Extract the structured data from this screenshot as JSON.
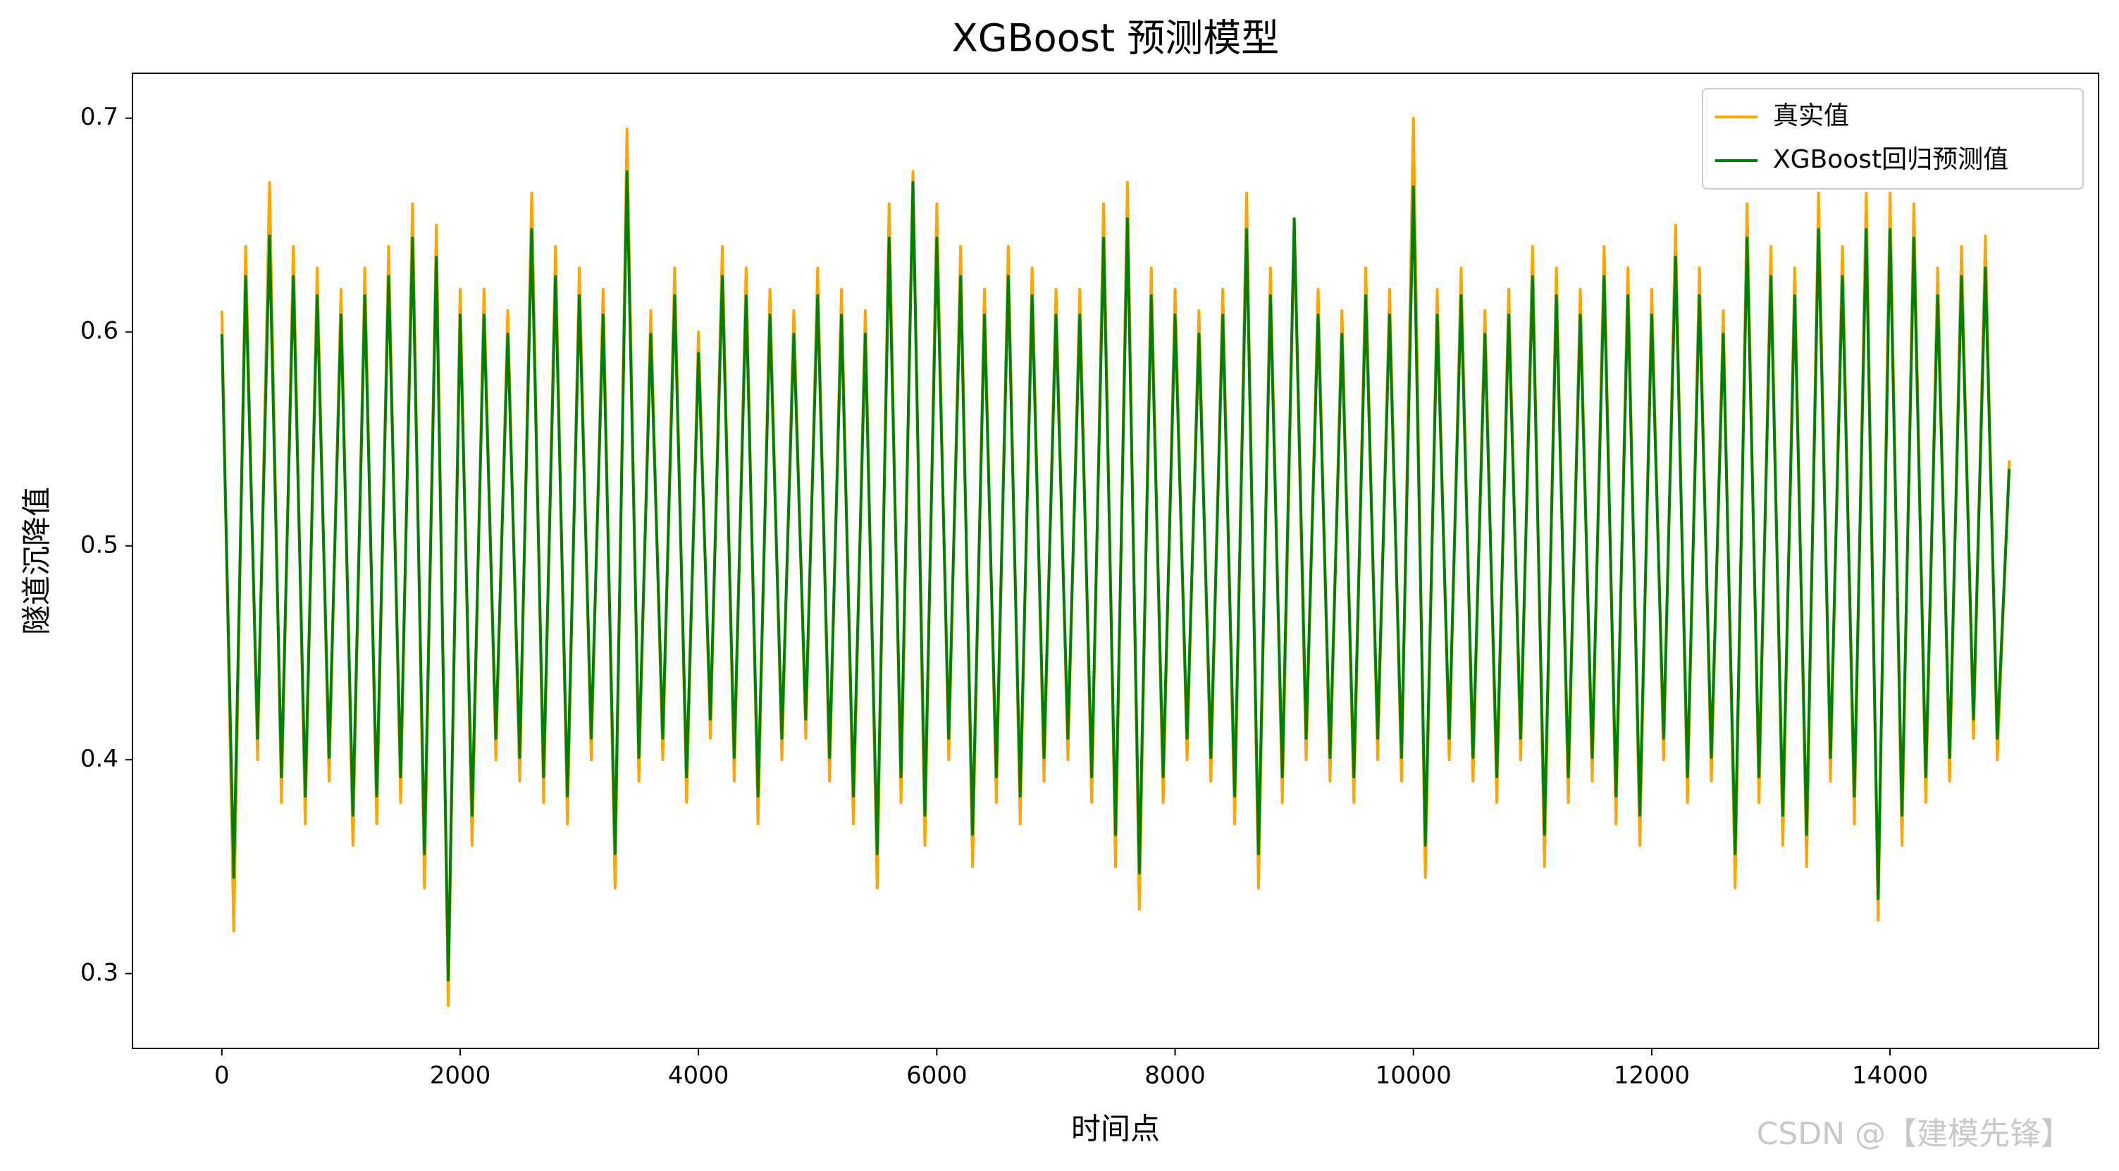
{
  "chart_data": {
    "type": "line",
    "title": "XGBoost 预测模型",
    "x_label": "时间点",
    "y_label": "隧道沉降值",
    "watermark": "CSDN @【建模先锋】",
    "x": [
      0,
      100,
      200,
      300,
      400,
      500,
      600,
      700,
      800,
      900,
      1000,
      1100,
      1200,
      1300,
      1400,
      1500,
      1600,
      1700,
      1800,
      1900,
      2000,
      2100,
      2200,
      2300,
      2400,
      2500,
      2600,
      2700,
      2800,
      2900,
      3000,
      3100,
      3200,
      3300,
      3400,
      3500,
      3600,
      3700,
      3800,
      3900,
      4000,
      4100,
      4200,
      4300,
      4400,
      4500,
      4600,
      4700,
      4800,
      4900,
      5000,
      5100,
      5200,
      5300,
      5400,
      5500,
      5600,
      5700,
      5800,
      5900,
      6000,
      6100,
      6200,
      6300,
      6400,
      6500,
      6600,
      6700,
      6800,
      6900,
      7000,
      7100,
      7200,
      7300,
      7400,
      7500,
      7600,
      7700,
      7800,
      7900,
      8000,
      8100,
      8200,
      8300,
      8400,
      8500,
      8600,
      8700,
      8800,
      8900,
      9000,
      9100,
      9200,
      9300,
      9400,
      9500,
      9600,
      9700,
      9800,
      9900,
      10000,
      10100,
      10200,
      10300,
      10400,
      10500,
      10600,
      10700,
      10800,
      10900,
      11000,
      11100,
      11200,
      11300,
      11400,
      11500,
      11600,
      11700,
      11800,
      11900,
      12000,
      12100,
      12200,
      12300,
      12400,
      12500,
      12600,
      12700,
      12800,
      12900,
      13000,
      13100,
      13200,
      13300,
      13400,
      13500,
      13600,
      13700,
      13800,
      13900,
      14000,
      14100,
      14200,
      14300,
      14400,
      14500,
      14600,
      14700,
      14800,
      14900,
      15000
    ],
    "series": [
      {
        "name": "真实值",
        "color": "#ffa500",
        "values": [
          0.61,
          0.32,
          0.64,
          0.4,
          0.67,
          0.38,
          0.64,
          0.37,
          0.63,
          0.39,
          0.62,
          0.36,
          0.63,
          0.37,
          0.64,
          0.38,
          0.66,
          0.34,
          0.65,
          0.285,
          0.62,
          0.36,
          0.62,
          0.4,
          0.61,
          0.39,
          0.665,
          0.38,
          0.64,
          0.37,
          0.63,
          0.4,
          0.62,
          0.34,
          0.695,
          0.39,
          0.61,
          0.4,
          0.63,
          0.38,
          0.6,
          0.41,
          0.64,
          0.39,
          0.63,
          0.37,
          0.62,
          0.4,
          0.61,
          0.41,
          0.63,
          0.39,
          0.62,
          0.37,
          0.61,
          0.34,
          0.66,
          0.38,
          0.675,
          0.36,
          0.66,
          0.4,
          0.64,
          0.35,
          0.62,
          0.38,
          0.64,
          0.37,
          0.63,
          0.39,
          0.62,
          0.4,
          0.62,
          0.38,
          0.66,
          0.35,
          0.67,
          0.33,
          0.63,
          0.38,
          0.62,
          0.4,
          0.61,
          0.39,
          0.62,
          0.37,
          0.665,
          0.34,
          0.63,
          0.38,
          0.65,
          0.4,
          0.62,
          0.39,
          0.61,
          0.38,
          0.63,
          0.4,
          0.62,
          0.39,
          0.7,
          0.345,
          0.62,
          0.4,
          0.63,
          0.39,
          0.61,
          0.38,
          0.62,
          0.4,
          0.64,
          0.35,
          0.63,
          0.38,
          0.62,
          0.39,
          0.64,
          0.37,
          0.63,
          0.36,
          0.62,
          0.4,
          0.65,
          0.38,
          0.63,
          0.39,
          0.61,
          0.34,
          0.66,
          0.38,
          0.64,
          0.36,
          0.63,
          0.35,
          0.665,
          0.39,
          0.64,
          0.37,
          0.665,
          0.325,
          0.665,
          0.36,
          0.66,
          0.38,
          0.63,
          0.39,
          0.64,
          0.41,
          0.645,
          0.4,
          0.54
        ]
      },
      {
        "name": "XGBoost回归预测值",
        "color": "#008000",
        "values": [
          0.599,
          0.345,
          0.626,
          0.41,
          0.645,
          0.392,
          0.626,
          0.383,
          0.617,
          0.401,
          0.608,
          0.374,
          0.617,
          0.383,
          0.626,
          0.392,
          0.644,
          0.356,
          0.635,
          0.297,
          0.608,
          0.374,
          0.608,
          0.41,
          0.599,
          0.401,
          0.648,
          0.392,
          0.626,
          0.383,
          0.617,
          0.41,
          0.608,
          0.356,
          0.675,
          0.401,
          0.599,
          0.41,
          0.617,
          0.392,
          0.59,
          0.419,
          0.626,
          0.401,
          0.617,
          0.383,
          0.608,
          0.41,
          0.599,
          0.419,
          0.617,
          0.401,
          0.608,
          0.383,
          0.599,
          0.356,
          0.644,
          0.392,
          0.67,
          0.374,
          0.644,
          0.41,
          0.626,
          0.365,
          0.608,
          0.392,
          0.626,
          0.383,
          0.617,
          0.401,
          0.608,
          0.41,
          0.608,
          0.392,
          0.644,
          0.365,
          0.653,
          0.347,
          0.617,
          0.392,
          0.608,
          0.41,
          0.599,
          0.401,
          0.608,
          0.383,
          0.648,
          0.356,
          0.617,
          0.392,
          0.653,
          0.41,
          0.608,
          0.401,
          0.599,
          0.392,
          0.617,
          0.41,
          0.608,
          0.401,
          0.668,
          0.36,
          0.608,
          0.41,
          0.617,
          0.401,
          0.599,
          0.392,
          0.608,
          0.41,
          0.626,
          0.365,
          0.617,
          0.392,
          0.608,
          0.401,
          0.626,
          0.383,
          0.617,
          0.374,
          0.608,
          0.41,
          0.635,
          0.392,
          0.617,
          0.401,
          0.599,
          0.356,
          0.644,
          0.392,
          0.626,
          0.374,
          0.617,
          0.365,
          0.648,
          0.401,
          0.626,
          0.383,
          0.648,
          0.335,
          0.648,
          0.374,
          0.644,
          0.392,
          0.617,
          0.401,
          0.626,
          0.419,
          0.63,
          0.41,
          0.536
        ]
      }
    ],
    "xlim": [
      -750,
      15750
    ],
    "ylim": [
      0.265,
      0.721
    ],
    "xticks": [
      0,
      2000,
      4000,
      6000,
      8000,
      10000,
      12000,
      14000
    ],
    "yticks": [
      0.3,
      0.4,
      0.5,
      0.6,
      0.7
    ],
    "legend": "upper right"
  }
}
